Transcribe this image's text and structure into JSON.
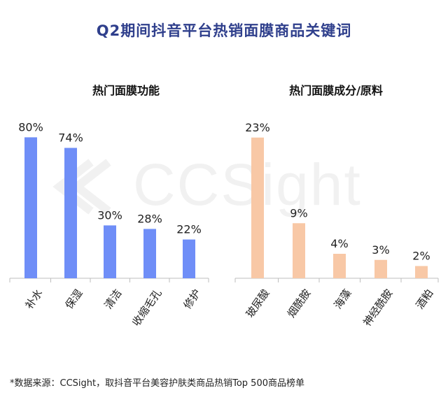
{
  "title": "Q2期间抖音平台热销面膜商品关键词",
  "watermark": "CCSight",
  "footer": "*数据来源：CCSight，取抖音平台美容护肤类商品热销Top 500商品榜单",
  "colors": {
    "title": "#2f3f8c",
    "left_bars": "#6f8ef7",
    "right_bars": "#f8c8a6"
  },
  "chart_data": [
    {
      "type": "bar",
      "title": "热门面膜功能",
      "categories": [
        "补水",
        "保湿",
        "清洁",
        "收缩毛孔",
        "修护"
      ],
      "values": [
        80,
        74,
        30,
        28,
        22
      ],
      "value_labels": [
        "80%",
        "74%",
        "30%",
        "28%",
        "22%"
      ],
      "xlabel": "",
      "ylabel": "",
      "ylim": [
        0,
        100
      ],
      "grid": false,
      "legend": "none"
    },
    {
      "type": "bar",
      "title": "热门面膜成分/原料",
      "categories": [
        "玻尿酸",
        "烟酰胺",
        "海藻",
        "神经酰胺",
        "酒粕"
      ],
      "values": [
        23,
        9,
        4,
        3,
        2
      ],
      "value_labels": [
        "23%",
        "9%",
        "4%",
        "3%",
        "2%"
      ],
      "xlabel": "",
      "ylabel": "",
      "ylim": [
        0,
        28.8
      ],
      "grid": false,
      "legend": "none"
    }
  ]
}
